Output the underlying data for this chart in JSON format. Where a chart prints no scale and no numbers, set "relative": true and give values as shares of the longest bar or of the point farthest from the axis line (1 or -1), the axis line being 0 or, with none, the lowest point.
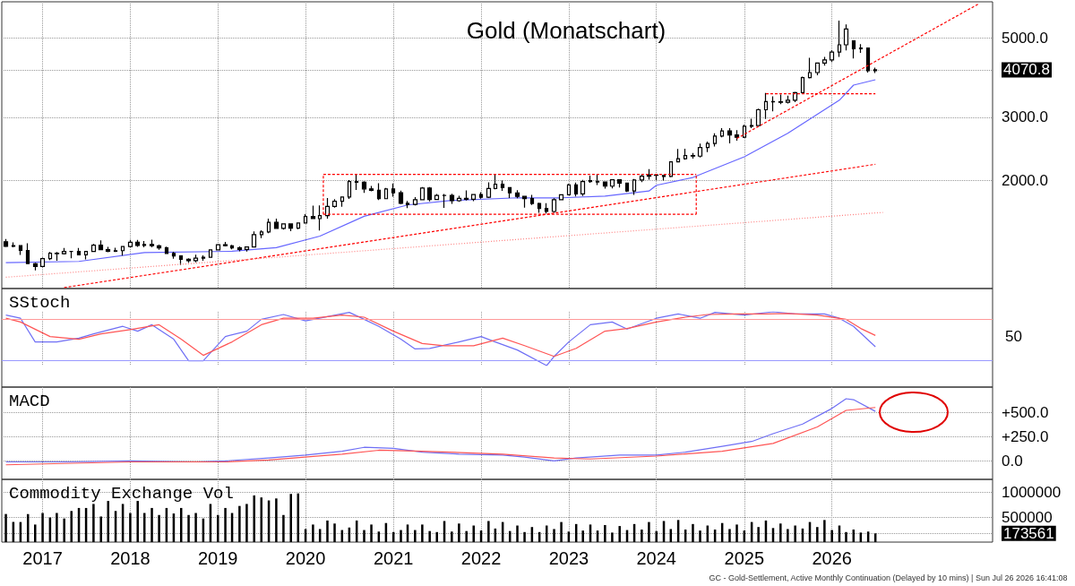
{
  "chart_data": [
    {
      "type": "candlestick",
      "title": "Gold (Monatschart)",
      "log": "y",
      "grid": true,
      "tick_labels": "y",
      "color": "#000000",
      "xlim": [
        "2016-07-15",
        "2027-11-01"
      ],
      "xticks": [
        {
          "value": "2017-01",
          "label": null
        },
        {
          "value": "2018-01",
          "label": null
        },
        {
          "value": "2019-01",
          "label": null
        },
        {
          "value": "2020-01",
          "label": null
        },
        {
          "value": "2021-01",
          "label": null
        },
        {
          "value": "2022-01",
          "label": null
        },
        {
          "value": "2023-01",
          "label": null
        },
        {
          "value": "2024-01",
          "label": null
        },
        {
          "value": "2025-01",
          "label": null
        },
        {
          "value": "2026-01",
          "label": null
        }
      ],
      "ylim": [
        1000,
        6300
      ],
      "yticks": [
        {
          "value": 2000,
          "label": "2000.0"
        },
        {
          "value": 3000,
          "label": "3000.0"
        },
        {
          "value": 4070.8,
          "label": "4070.8"
        },
        {
          "value": 5000,
          "label": "5000.0"
        }
      ],
      "x": [
        "2016-08",
        "2016-09",
        "2016-10",
        "2016-11",
        "2016-12",
        "2017-01",
        "2017-02",
        "2017-03",
        "2017-04",
        "2017-05",
        "2017-06",
        "2017-07",
        "2017-08",
        "2017-09",
        "2017-10",
        "2017-11",
        "2017-12",
        "2018-01",
        "2018-02",
        "2018-03",
        "2018-04",
        "2018-05",
        "2018-06",
        "2018-07",
        "2018-08",
        "2018-09",
        "2018-10",
        "2018-11",
        "2018-12",
        "2019-01",
        "2019-02",
        "2019-03",
        "2019-04",
        "2019-05",
        "2019-06",
        "2019-07",
        "2019-08",
        "2019-09",
        "2019-10",
        "2019-11",
        "2019-12",
        "2020-01",
        "2020-02",
        "2020-03",
        "2020-04",
        "2020-05",
        "2020-06",
        "2020-07",
        "2020-08",
        "2020-09",
        "2020-10",
        "2020-11",
        "2020-12",
        "2021-01",
        "2021-02",
        "2021-03",
        "2021-04",
        "2021-05",
        "2021-06",
        "2021-07",
        "2021-08",
        "2021-09",
        "2021-10",
        "2021-11",
        "2021-12",
        "2022-01",
        "2022-02",
        "2022-03",
        "2022-04",
        "2022-05",
        "2022-06",
        "2022-07",
        "2022-08",
        "2022-09",
        "2022-10",
        "2022-11",
        "2022-12",
        "2023-01",
        "2023-02",
        "2023-03",
        "2023-04",
        "2023-05",
        "2023-06",
        "2023-07",
        "2023-08",
        "2023-09",
        "2023-10",
        "2023-11",
        "2023-12",
        "2024-01",
        "2024-02",
        "2024-03",
        "2024-04",
        "2024-05",
        "2024-06",
        "2024-07",
        "2024-08",
        "2024-09",
        "2024-10",
        "2024-11",
        "2024-12",
        "2025-01",
        "2025-02",
        "2025-03",
        "2025-04",
        "2025-05",
        "2025-06",
        "2025-07",
        "2025-08",
        "2025-09",
        "2025-10",
        "2025-11",
        "2025-12",
        "2026-01",
        "2026-02",
        "2026-03",
        "2026-04",
        "2026-05",
        "2026-06",
        "2026-07"
      ],
      "ohlc": [
        [
          1350,
          1375,
          1305,
          1312
        ],
        [
          1312,
          1345,
          1302,
          1317
        ],
        [
          1317,
          1322,
          1241,
          1277
        ],
        [
          1277,
          1338,
          1171,
          1173
        ],
        [
          1173,
          1180,
          1124,
          1152
        ],
        [
          1152,
          1220,
          1146,
          1211
        ],
        [
          1211,
          1264,
          1200,
          1254
        ],
        [
          1254,
          1264,
          1195,
          1251
        ],
        [
          1251,
          1297,
          1245,
          1268
        ],
        [
          1268,
          1272,
          1214,
          1268
        ],
        [
          1268,
          1298,
          1237,
          1242
        ],
        [
          1242,
          1274,
          1205,
          1269
        ],
        [
          1269,
          1331,
          1264,
          1321
        ],
        [
          1321,
          1362,
          1279,
          1284
        ],
        [
          1284,
          1307,
          1263,
          1271
        ],
        [
          1271,
          1300,
          1264,
          1275
        ],
        [
          1275,
          1310,
          1236,
          1309
        ],
        [
          1309,
          1366,
          1303,
          1345
        ],
        [
          1345,
          1366,
          1307,
          1318
        ],
        [
          1318,
          1356,
          1303,
          1327
        ],
        [
          1327,
          1369,
          1302,
          1316
        ],
        [
          1316,
          1326,
          1282,
          1298
        ],
        [
          1298,
          1309,
          1250,
          1253
        ],
        [
          1253,
          1266,
          1211,
          1233
        ],
        [
          1233,
          1236,
          1161,
          1206
        ],
        [
          1206,
          1214,
          1180,
          1196
        ],
        [
          1196,
          1243,
          1183,
          1215
        ],
        [
          1215,
          1238,
          1196,
          1222
        ],
        [
          1222,
          1286,
          1221,
          1282
        ],
        [
          1282,
          1326,
          1276,
          1325
        ],
        [
          1325,
          1349,
          1311,
          1316
        ],
        [
          1316,
          1324,
          1286,
          1298
        ],
        [
          1298,
          1310,
          1270,
          1285
        ],
        [
          1285,
          1311,
          1267,
          1305
        ],
        [
          1305,
          1442,
          1305,
          1413
        ],
        [
          1413,
          1453,
          1382,
          1437
        ],
        [
          1437,
          1566,
          1427,
          1529
        ],
        [
          1529,
          1566,
          1466,
          1472
        ],
        [
          1472,
          1519,
          1459,
          1514
        ],
        [
          1514,
          1517,
          1446,
          1473
        ],
        [
          1473,
          1525,
          1463,
          1523
        ],
        [
          1523,
          1613,
          1518,
          1587
        ],
        [
          1587,
          1703,
          1564,
          1566
        ],
        [
          1566,
          1705,
          1451,
          1597
        ],
        [
          1597,
          1788,
          1567,
          1694
        ],
        [
          1694,
          1775,
          1681,
          1751
        ],
        [
          1751,
          1800,
          1690,
          1800
        ],
        [
          1800,
          2005,
          1777,
          1986
        ],
        [
          1986,
          2089,
          1884,
          1978
        ],
        [
          1978,
          1992,
          1849,
          1895
        ],
        [
          1895,
          1933,
          1867,
          1879
        ],
        [
          1879,
          1966,
          1764,
          1780
        ],
        [
          1780,
          1906,
          1775,
          1895
        ],
        [
          1895,
          1962,
          1802,
          1850
        ],
        [
          1850,
          1875,
          1717,
          1728
        ],
        [
          1728,
          1755,
          1676,
          1715
        ],
        [
          1715,
          1798,
          1705,
          1768
        ],
        [
          1768,
          1919,
          1765,
          1905
        ],
        [
          1905,
          1917,
          1750,
          1771
        ],
        [
          1771,
          1835,
          1767,
          1817
        ],
        [
          1817,
          1834,
          1677,
          1818
        ],
        [
          1818,
          1836,
          1722,
          1757
        ],
        [
          1757,
          1814,
          1745,
          1784
        ],
        [
          1784,
          1877,
          1759,
          1774
        ],
        [
          1774,
          1831,
          1753,
          1829
        ],
        [
          1829,
          1855,
          1780,
          1797
        ],
        [
          1797,
          1976,
          1788,
          1900
        ],
        [
          1900,
          2079,
          1890,
          1954
        ],
        [
          1954,
          2003,
          1872,
          1911
        ],
        [
          1911,
          1915,
          1787,
          1848
        ],
        [
          1848,
          1880,
          1785,
          1807
        ],
        [
          1807,
          1814,
          1681,
          1781
        ],
        [
          1781,
          1824,
          1710,
          1726
        ],
        [
          1726,
          1735,
          1626,
          1672
        ],
        [
          1672,
          1729,
          1618,
          1640
        ],
        [
          1640,
          1786,
          1625,
          1768
        ],
        [
          1768,
          1833,
          1765,
          1826
        ],
        [
          1826,
          1959,
          1824,
          1945
        ],
        [
          1945,
          1975,
          1806,
          1836
        ],
        [
          1836,
          2009,
          1810,
          1986
        ],
        [
          1986,
          2063,
          1970,
          2000
        ],
        [
          1990,
          2085,
          1944,
          1982
        ],
        [
          1982,
          1985,
          1900,
          1929
        ],
        [
          1929,
          2015,
          1903,
          2009
        ],
        [
          2009,
          2011,
          1913,
          1966
        ],
        [
          1966,
          1975,
          1858,
          1870
        ],
        [
          1870,
          2019,
          1823,
          2006
        ],
        [
          2006,
          2075,
          1980,
          2057
        ],
        [
          2057,
          2152,
          2010,
          2072
        ],
        [
          2072,
          2088,
          2002,
          2067
        ],
        [
          2067,
          2067,
          2001,
          2054
        ],
        [
          2054,
          2257,
          2044,
          2254
        ],
        [
          2254,
          2448,
          2250,
          2302
        ],
        [
          2302,
          2454,
          2287,
          2348
        ],
        [
          2348,
          2388,
          2304,
          2339
        ],
        [
          2339,
          2537,
          2318,
          2473
        ],
        [
          2473,
          2570,
          2400,
          2536
        ],
        [
          2536,
          2709,
          2490,
          2660
        ],
        [
          2660,
          2801,
          2640,
          2750
        ],
        [
          2750,
          2800,
          2540,
          2681
        ],
        [
          2681,
          2762,
          2583,
          2641
        ],
        [
          2641,
          2862,
          2628,
          2835
        ],
        [
          2835,
          2974,
          2800,
          2848
        ],
        [
          2848,
          3175,
          2840,
          3150
        ],
        [
          3150,
          3509,
          2970,
          3320
        ],
        [
          3320,
          3435,
          3120,
          3315
        ],
        [
          3315,
          3475,
          3265,
          3307
        ],
        [
          3307,
          3450,
          3280,
          3348
        ],
        [
          3348,
          3534,
          3310,
          3516
        ],
        [
          3516,
          3900,
          3500,
          3873
        ],
        [
          3873,
          4398,
          3850,
          4000
        ],
        [
          4000,
          4260,
          3930,
          4250
        ],
        [
          4250,
          4420,
          4180,
          4340
        ],
        [
          4340,
          4620,
          4280,
          4560
        ],
        [
          4560,
          5580,
          4420,
          4780
        ],
        [
          4780,
          5450,
          4610,
          5290
        ],
        [
          4900,
          4920,
          4380,
          4660
        ],
        [
          4660,
          4800,
          4540,
          4680
        ],
        [
          4680,
          4690,
          4000,
          4050
        ],
        [
          4050,
          4130,
          3990,
          4070.8
        ]
      ],
      "series": [
        {
          "type": "line",
          "color": "#6666ff",
          "line_style": "solid",
          "x": [
            "2016-08",
            "2017-06",
            "2018-03",
            "2019-03",
            "2019-09",
            "2020-03",
            "2020-09",
            "2021-03",
            "2021-09",
            "2022-06",
            "2022-12",
            "2023-06",
            "2023-12",
            "2024-01",
            "2024-06",
            "2025-01",
            "2025-07",
            "2026-02",
            "2026-04",
            "2026-07"
          ],
          "values": [
            1180,
            1190,
            1260,
            1270,
            1300,
            1400,
            1590,
            1710,
            1760,
            1790,
            1790,
            1810,
            1870,
            1940,
            2040,
            2330,
            2710,
            3350,
            3690,
            3820
          ]
        },
        {
          "type": "line",
          "color": "#ff0000",
          "line_style": "dashed",
          "x": [
            "2017-04",
            "2026-07"
          ],
          "values": [
            1006,
            2220
          ]
        },
        {
          "type": "line",
          "color": "#ff8080",
          "line_style": "dotted",
          "x": [
            "2016-08",
            "2026-08"
          ],
          "values": [
            1075,
            1630
          ]
        },
        {
          "type": "line",
          "color": "#ff0000",
          "line_style": "dashed",
          "x": [
            "2024-12",
            "2027-09"
          ],
          "values": [
            2620,
            6200
          ]
        },
        {
          "type": "line",
          "color": "#ff0000",
          "line_style": "dashed",
          "x": [
            "2025-04",
            "2026-07"
          ],
          "values": [
            3490,
            3490
          ]
        },
        {
          "type": "line",
          "color": "#ff0000",
          "line_style": "dashed",
          "x": [
            "2020-03-15",
            "2024-06-15"
          ],
          "values": [
            2080,
            2080
          ]
        },
        {
          "type": "line",
          "color": "#ff0000",
          "line_style": "dashed",
          "x": [
            "2020-03-15",
            "2024-06-15"
          ],
          "values": [
            1610,
            1610
          ]
        },
        {
          "type": "line",
          "color": "#ff0000",
          "line_style": "dashed",
          "x": [
            "2020-03-15",
            "2020-03-15"
          ],
          "values": [
            1610,
            2080
          ]
        },
        {
          "type": "line",
          "color": "#ff0000",
          "line_style": "dashed",
          "x": [
            "2024-06-15",
            "2024-06-15"
          ],
          "values": [
            1610,
            2080
          ]
        }
      ]
    },
    {
      "type": "line",
      "title": "SStoch",
      "relative": true,
      "grid": true,
      "tick_labels": false,
      "xlim": [
        "2016-07-15",
        "2027-11-01"
      ],
      "xticks": [
        {
          "value": "2017-01",
          "label": null
        },
        {
          "value": "2018-01",
          "label": null
        },
        {
          "value": "2019-01",
          "label": null
        },
        {
          "value": "2020-01",
          "label": null
        },
        {
          "value": "2021-01",
          "label": null
        },
        {
          "value": "2022-01",
          "label": null
        },
        {
          "value": "2023-01",
          "label": null
        },
        {
          "value": "2024-01",
          "label": null
        },
        {
          "value": "2025-01",
          "label": null
        },
        {
          "value": "2026-01",
          "label": null
        }
      ],
      "annotations": [
        "50"
      ],
      "ref_lines": [
        {
          "axis": "y",
          "value": 0.86,
          "color": "#ff9999"
        },
        {
          "axis": "y",
          "value": 0.09,
          "color": "#9999ff"
        }
      ],
      "series": [
        {
          "color": "#6f6ff5",
          "x": [
            "2016-08",
            "2016-10",
            "2016-12",
            "2017-03",
            "2017-06",
            "2017-08",
            "2017-12",
            "2018-02",
            "2018-04",
            "2018-07",
            "2018-09",
            "2018-11",
            "2019-02",
            "2019-05",
            "2019-07",
            "2019-10",
            "2020-01",
            "2020-04",
            "2020-07",
            "2020-09",
            "2020-11",
            "2021-02",
            "2021-04",
            "2021-06",
            "2021-10",
            "2022-01",
            "2022-03",
            "2022-06",
            "2022-10",
            "2022-11",
            "2023-01",
            "2023-04",
            "2023-07",
            "2023-09",
            "2024-01",
            "2024-04",
            "2024-07",
            "2024-09",
            "2025-01",
            "2025-05",
            "2025-08",
            "2025-12",
            "2026-02",
            "2026-04",
            "2026-07"
          ],
          "values": [
            0.94,
            0.88,
            0.44,
            0.44,
            0.51,
            0.59,
            0.73,
            0.64,
            0.76,
            0.49,
            0.09,
            0.09,
            0.54,
            0.64,
            0.86,
            0.95,
            0.83,
            0.91,
            0.99,
            0.86,
            0.73,
            0.49,
            0.31,
            0.32,
            0.44,
            0.54,
            0.44,
            0.29,
            0,
            0.17,
            0.44,
            0.76,
            0.81,
            0.68,
            0.88,
            0.96,
            0.88,
            0.99,
            0.94,
            1,
            0.96,
            0.96,
            0.88,
            0.73,
            0.35
          ]
        },
        {
          "color": "#ff5555",
          "x": [
            "2016-08",
            "2016-10",
            "2017-02",
            "2017-06",
            "2017-09",
            "2018-01",
            "2018-05",
            "2018-08",
            "2018-11",
            "2019-03",
            "2019-07",
            "2019-10",
            "2020-02",
            "2020-06",
            "2020-09",
            "2021-01",
            "2021-05",
            "2021-08",
            "2021-12",
            "2022-04",
            "2022-07",
            "2022-11",
            "2023-02",
            "2023-06",
            "2023-09",
            "2024-01",
            "2024-05",
            "2024-08",
            "2024-12",
            "2025-04",
            "2025-07",
            "2025-11",
            "2026-03",
            "2026-05",
            "2026-07"
          ],
          "values": [
            0.88,
            0.81,
            0.54,
            0.49,
            0.59,
            0.67,
            0.76,
            0.49,
            0.19,
            0.44,
            0.76,
            0.88,
            0.88,
            0.94,
            0.9,
            0.64,
            0.41,
            0.37,
            0.37,
            0.51,
            0.37,
            0.17,
            0.32,
            0.64,
            0.69,
            0.81,
            0.9,
            0.95,
            0.96,
            0.96,
            0.97,
            0.94,
            0.86,
            0.69,
            0.56
          ]
        }
      ]
    },
    {
      "type": "line",
      "title": "MACD",
      "grid": true,
      "tick_labels": "y",
      "xlim": [
        "2016-07-15",
        "2027-11-01"
      ],
      "xticks": [
        {
          "value": "2017-01",
          "label": null
        },
        {
          "value": "2018-01",
          "label": null
        },
        {
          "value": "2019-01",
          "label": null
        },
        {
          "value": "2020-01",
          "label": null
        },
        {
          "value": "2021-01",
          "label": null
        },
        {
          "value": "2022-01",
          "label": null
        },
        {
          "value": "2023-01",
          "label": null
        },
        {
          "value": "2024-01",
          "label": null
        },
        {
          "value": "2025-01",
          "label": null
        },
        {
          "value": "2026-01",
          "label": null
        }
      ],
      "ylim": [
        -190,
        760
      ],
      "yticks": [
        {
          "value": 0,
          "label": "0.0"
        },
        {
          "value": 250,
          "label": "+250.0"
        },
        {
          "value": 500,
          "label": "+500.0"
        }
      ],
      "series": [
        {
          "color": "#6f6ff5",
          "x": [
            "2016-08",
            "2017-04",
            "2018-01",
            "2018-10",
            "2019-02",
            "2019-08",
            "2020-01",
            "2020-06",
            "2020-09",
            "2021-01",
            "2021-05",
            "2021-10",
            "2022-04",
            "2022-07",
            "2022-11",
            "2023-02",
            "2023-08",
            "2024-01",
            "2024-05",
            "2024-10",
            "2025-02",
            "2025-05",
            "2025-09",
            "2026-01",
            "2026-03",
            "2026-04",
            "2026-07"
          ],
          "values": [
            -10,
            -10,
            0,
            -10,
            0,
            30,
            60,
            100,
            140,
            130,
            90,
            70,
            60,
            40,
            0,
            30,
            60,
            60,
            90,
            150,
            200,
            280,
            380,
            540,
            640,
            630,
            510
          ]
        },
        {
          "color": "#ff5555",
          "x": [
            "2016-08",
            "2018-01",
            "2019-02",
            "2019-08",
            "2020-06",
            "2020-11",
            "2021-05",
            "2022-04",
            "2022-11",
            "2023-04",
            "2024-01",
            "2024-10",
            "2025-05",
            "2025-11",
            "2026-03",
            "2026-07"
          ],
          "values": [
            -40,
            -10,
            -10,
            10,
            70,
            110,
            100,
            70,
            30,
            20,
            50,
            100,
            180,
            350,
            520,
            550
          ]
        }
      ]
    },
    {
      "type": "bar",
      "title": "Commodity Exchange Vol",
      "grid": true,
      "color": "#000000",
      "xlim": [
        "2016-07-15",
        "2027-11-01"
      ],
      "xticks": [
        {
          "value": "2017-01",
          "label": "2017"
        },
        {
          "value": "2018-01",
          "label": "2018"
        },
        {
          "value": "2019-01",
          "label": "2019"
        },
        {
          "value": "2020-01",
          "label": "2020"
        },
        {
          "value": "2021-01",
          "label": "2021"
        },
        {
          "value": "2022-01",
          "label": "2022"
        },
        {
          "value": "2023-01",
          "label": "2023"
        },
        {
          "value": "2024-01",
          "label": "2024"
        },
        {
          "value": "2025-01",
          "label": "2025"
        },
        {
          "value": "2026-01",
          "label": "2026"
        }
      ],
      "ylim": [
        0,
        1250000
      ],
      "yticks": [
        {
          "value": 173561,
          "label": "173561"
        },
        500000,
        1000000
      ],
      "x": [
        "2016-08",
        "2016-09",
        "2016-10",
        "2016-11",
        "2016-12",
        "2017-01",
        "2017-02",
        "2017-03",
        "2017-04",
        "2017-05",
        "2017-06",
        "2017-07",
        "2017-08",
        "2017-09",
        "2017-10",
        "2017-11",
        "2017-12",
        "2018-01",
        "2018-02",
        "2018-03",
        "2018-04",
        "2018-05",
        "2018-06",
        "2018-07",
        "2018-08",
        "2018-09",
        "2018-10",
        "2018-11",
        "2018-12",
        "2019-01",
        "2019-02",
        "2019-03",
        "2019-04",
        "2019-05",
        "2019-06",
        "2019-07",
        "2019-08",
        "2019-09",
        "2019-10",
        "2019-11",
        "2019-12",
        "2020-01",
        "2020-02",
        "2020-03",
        "2020-04",
        "2020-05",
        "2020-06",
        "2020-07",
        "2020-08",
        "2020-09",
        "2020-10",
        "2020-11",
        "2020-12",
        "2021-01",
        "2021-02",
        "2021-03",
        "2021-04",
        "2021-05",
        "2021-06",
        "2021-07",
        "2021-08",
        "2021-09",
        "2021-10",
        "2021-11",
        "2021-12",
        "2022-01",
        "2022-02",
        "2022-03",
        "2022-04",
        "2022-05",
        "2022-06",
        "2022-07",
        "2022-08",
        "2022-09",
        "2022-10",
        "2022-11",
        "2022-12",
        "2023-01",
        "2023-02",
        "2023-03",
        "2023-04",
        "2023-05",
        "2023-06",
        "2023-07",
        "2023-08",
        "2023-09",
        "2023-10",
        "2023-11",
        "2023-12",
        "2024-01",
        "2024-02",
        "2024-03",
        "2024-04",
        "2024-05",
        "2024-06",
        "2024-07",
        "2024-08",
        "2024-09",
        "2024-10",
        "2024-11",
        "2024-12",
        "2025-01",
        "2025-02",
        "2025-03",
        "2025-04",
        "2025-05",
        "2025-06",
        "2025-07",
        "2025-08",
        "2025-09",
        "2025-10",
        "2025-11",
        "2025-12",
        "2026-01",
        "2026-02",
        "2026-03",
        "2026-04",
        "2026-05",
        "2026-06",
        "2026-07"
      ],
      "values": [
        560000,
        400000,
        400000,
        560000,
        350000,
        580000,
        490000,
        580000,
        470000,
        620000,
        680000,
        680000,
        760000,
        510000,
        820000,
        620000,
        760000,
        580000,
        820000,
        580000,
        680000,
        540000,
        680000,
        570000,
        680000,
        540000,
        580000,
        470000,
        760000,
        540000,
        680000,
        580000,
        720000,
        760000,
        930000,
        890000,
        830000,
        870000,
        540000,
        960000,
        970000,
        260000,
        350000,
        260000,
        430000,
        370000,
        240000,
        290000,
        430000,
        240000,
        350000,
        210000,
        380000,
        200000,
        240000,
        350000,
        240000,
        350000,
        220000,
        200000,
        420000,
        210000,
        370000,
        220000,
        330000,
        230000,
        420000,
        270000,
        400000,
        220000,
        330000,
        200000,
        300000,
        200000,
        330000,
        260000,
        400000,
        210000,
        360000,
        230000,
        350000,
        230000,
        340000,
        190000,
        320000,
        240000,
        360000,
        250000,
        400000,
        220000,
        420000,
        260000,
        440000,
        250000,
        360000,
        230000,
        330000,
        250000,
        380000,
        260000,
        350000,
        230000,
        400000,
        300000,
        430000,
        280000,
        370000,
        260000,
        330000,
        270000,
        400000,
        300000,
        440000,
        240000,
        330000,
        200000,
        250000,
        190000,
        210000,
        173561
      ],
      "annotations": [
        "GC - Gold-Settlement, Active Monthly Continuation (Delayed by 10 mins) | Sun Jul 26 2026 16:41:08"
      ]
    }
  ]
}
